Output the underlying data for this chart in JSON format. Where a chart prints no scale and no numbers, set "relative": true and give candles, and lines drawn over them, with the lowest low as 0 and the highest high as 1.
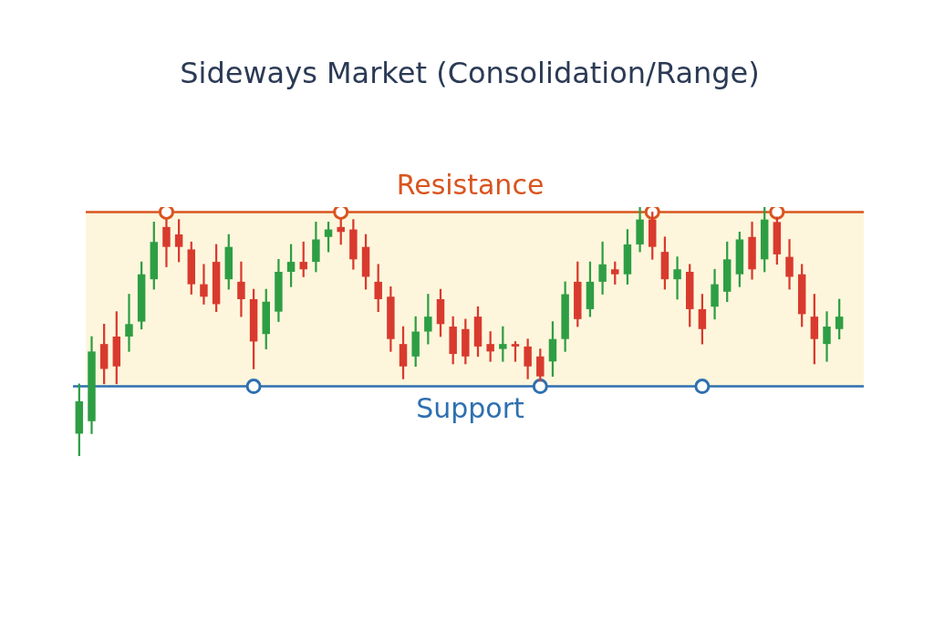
{
  "chart_data": {
    "type": "candlestick",
    "title": "Sideways Market (Consolidation/Range)",
    "relative": true,
    "categories": [
      null,
      null,
      null,
      null,
      null,
      null,
      null,
      null,
      null,
      null,
      null,
      null,
      null,
      null,
      null,
      null,
      null,
      null,
      null,
      null,
      null,
      null,
      null,
      null,
      null,
      null,
      null,
      null,
      null,
      null,
      null,
      null,
      null,
      null,
      null,
      null,
      null,
      null,
      null,
      null,
      null,
      null,
      null,
      null,
      null,
      null,
      null,
      null,
      null,
      null,
      null,
      null,
      null,
      null,
      null,
      null,
      null,
      null,
      null,
      null,
      null,
      null
    ],
    "ohlc": [
      [
        0.09,
        0.29,
        0,
        0.22
      ],
      [
        0.14,
        0.48,
        0.09,
        0.42
      ],
      [
        0.45,
        0.53,
        0.29,
        0.35
      ],
      [
        0.48,
        0.58,
        0.29,
        0.36
      ],
      [
        0.48,
        0.65,
        0.42,
        0.53
      ],
      [
        0.54,
        0.78,
        0.51,
        0.73
      ],
      [
        0.71,
        0.94,
        0.67,
        0.86
      ],
      [
        0.92,
        0.95,
        0.76,
        0.84
      ],
      [
        0.89,
        0.95,
        0.78,
        0.84
      ],
      [
        0.83,
        0.86,
        0.65,
        0.69
      ],
      [
        0.69,
        0.77,
        0.61,
        0.64
      ],
      [
        0.78,
        0.85,
        0.58,
        0.61
      ],
      [
        0.71,
        0.89,
        0.67,
        0.84
      ],
      [
        0.7,
        0.78,
        0.56,
        0.63
      ],
      [
        0.63,
        0.67,
        0.35,
        0.46
      ],
      [
        0.49,
        0.67,
        0.43,
        0.62
      ],
      [
        0.58,
        0.79,
        0.54,
        0.74
      ],
      [
        0.74,
        0.85,
        0.68,
        0.78
      ],
      [
        0.78,
        0.86,
        0.72,
        0.75
      ],
      [
        0.78,
        0.94,
        0.74,
        0.87
      ],
      [
        0.88,
        0.94,
        0.82,
        0.91
      ],
      [
        0.92,
        0.95,
        0.85,
        0.9
      ],
      [
        0.91,
        0.95,
        0.75,
        0.79
      ],
      [
        0.84,
        0.89,
        0.67,
        0.72
      ],
      [
        0.7,
        0.77,
        0.58,
        0.63
      ],
      [
        0.64,
        0.68,
        0.42,
        0.47
      ],
      [
        0.45,
        0.52,
        0.31,
        0.36
      ],
      [
        0.4,
        0.56,
        0.36,
        0.5
      ],
      [
        0.5,
        0.65,
        0.45,
        0.56
      ],
      [
        0.63,
        0.67,
        0.48,
        0.53
      ],
      [
        0.52,
        0.56,
        0.37,
        0.41
      ],
      [
        0.51,
        0.55,
        0.37,
        0.4
      ],
      [
        0.56,
        0.6,
        0.4,
        0.44
      ],
      [
        0.45,
        0.5,
        0.38,
        0.42
      ],
      [
        0.43,
        0.52,
        0.38,
        0.45
      ],
      [
        0.45,
        0.46,
        0.38,
        0.44
      ],
      [
        0.44,
        0.47,
        0.31,
        0.36
      ],
      [
        0.4,
        0.43,
        0.3,
        0.32
      ],
      [
        0.38,
        0.54,
        0.32,
        0.47
      ],
      [
        0.47,
        0.7,
        0.42,
        0.65
      ],
      [
        0.7,
        0.78,
        0.52,
        0.55
      ],
      [
        0.59,
        0.78,
        0.56,
        0.7
      ],
      [
        0.7,
        0.86,
        0.65,
        0.77
      ],
      [
        0.75,
        0.78,
        0.69,
        0.73
      ],
      [
        0.73,
        0.91,
        0.69,
        0.85
      ],
      [
        0.85,
        1,
        0.82,
        0.95
      ],
      [
        0.95,
        0.98,
        0.79,
        0.84
      ],
      [
        0.82,
        0.88,
        0.67,
        0.71
      ],
      [
        0.71,
        0.8,
        0.63,
        0.75
      ],
      [
        0.74,
        0.77,
        0.52,
        0.59
      ],
      [
        0.59,
        0.65,
        0.45,
        0.51
      ],
      [
        0.6,
        0.75,
        0.55,
        0.69
      ],
      [
        0.66,
        0.86,
        0.62,
        0.79
      ],
      [
        0.73,
        0.9,
        0.68,
        0.87
      ],
      [
        0.88,
        0.94,
        0.71,
        0.75
      ],
      [
        0.79,
        1,
        0.74,
        0.95
      ],
      [
        0.94,
        0.96,
        0.77,
        0.81
      ],
      [
        0.8,
        0.87,
        0.67,
        0.72
      ],
      [
        0.73,
        0.77,
        0.52,
        0.57
      ],
      [
        0.56,
        0.65,
        0.37,
        0.47
      ],
      [
        0.45,
        0.58,
        0.38,
        0.52
      ],
      [
        0.51,
        0.63,
        0.47,
        0.56
      ]
    ],
    "colors": [
      "#2e9e44",
      "#2e9e44",
      "#d93a2e",
      "#d93a2e",
      "#2e9e44",
      "#2e9e44",
      "#2e9e44",
      "#d93a2e",
      "#d93a2e",
      "#d93a2e",
      "#d93a2e",
      "#d93a2e",
      "#2e9e44",
      "#d93a2e",
      "#d93a2e",
      "#2e9e44",
      "#2e9e44",
      "#2e9e44",
      "#d93a2e",
      "#2e9e44",
      "#2e9e44",
      "#d93a2e",
      "#d93a2e",
      "#d93a2e",
      "#d93a2e",
      "#d93a2e",
      "#d93a2e",
      "#2e9e44",
      "#2e9e44",
      "#d93a2e",
      "#d93a2e",
      "#d93a2e",
      "#d93a2e",
      "#d93a2e",
      "#2e9e44",
      "#d93a2e",
      "#d93a2e",
      "#d93a2e",
      "#2e9e44",
      "#2e9e44",
      "#d93a2e",
      "#2e9e44",
      "#2e9e44",
      "#d93a2e",
      "#2e9e44",
      "#2e9e44",
      "#d93a2e",
      "#d93a2e",
      "#2e9e44",
      "#d93a2e",
      "#d93a2e",
      "#2e9e44",
      "#2e9e44",
      "#2e9e44",
      "#d93a2e",
      "#2e9e44",
      "#d93a2e",
      "#d93a2e",
      "#d93a2e",
      "#d93a2e",
      "#2e9e44",
      "#2e9e44"
    ],
    "series": [
      {
        "type": "scatter",
        "color": "#d9541e",
        "marker": "circle",
        "values": [
          null,
          null,
          null,
          null,
          null,
          null,
          null,
          0.98,
          null,
          null,
          null,
          null,
          null,
          null,
          null,
          null,
          null,
          null,
          null,
          null,
          null,
          0.98,
          null,
          null,
          null,
          null,
          null,
          null,
          null,
          null,
          null,
          null,
          null,
          null,
          null,
          null,
          null,
          null,
          null,
          null,
          null,
          null,
          null,
          null,
          null,
          null,
          0.98,
          null,
          null,
          null,
          null,
          null,
          null,
          null,
          null,
          null,
          0.98,
          null,
          null,
          null,
          null,
          null
        ]
      },
      {
        "type": "scatter",
        "color": "#2e6fb0",
        "marker": "circle",
        "values": [
          null,
          null,
          null,
          null,
          null,
          null,
          null,
          null,
          null,
          null,
          null,
          null,
          null,
          null,
          0.28,
          null,
          null,
          null,
          null,
          null,
          null,
          null,
          null,
          null,
          null,
          null,
          null,
          null,
          null,
          null,
          null,
          null,
          null,
          null,
          null,
          null,
          null,
          0.28,
          null,
          null,
          null,
          null,
          null,
          null,
          null,
          null,
          null,
          null,
          null,
          null,
          0.28,
          null,
          null,
          null,
          null,
          null,
          null,
          null,
          null,
          null,
          null,
          null
        ]
      }
    ],
    "ref_lines": [
      {
        "axis": "y",
        "value": 0.98,
        "label": "Resistance",
        "color": "#d9541e"
      },
      {
        "axis": "y",
        "value": 0.28,
        "label": "Support",
        "color": "#2e6fb0"
      }
    ],
    "bands": [
      {
        "axis": "y",
        "from": 0.28,
        "to": 0.98,
        "color": "#fdf6dc"
      }
    ]
  }
}
